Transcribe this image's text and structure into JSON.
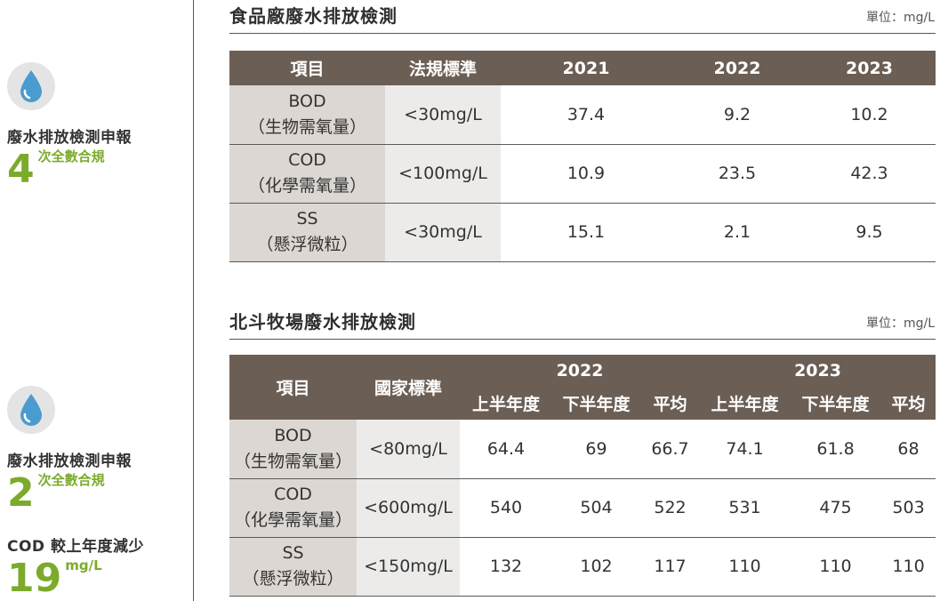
{
  "sidebar": {
    "kpi1": {
      "label": "廢水排放檢測申報",
      "number": "4",
      "suffix": "次全數合規",
      "icon": "water-drop-icon"
    },
    "kpi2": {
      "label": "廢水排放檢測申報",
      "number": "2",
      "suffix": "次全數合規",
      "icon": "water-drop-icon"
    },
    "kpi3": {
      "label": "COD 較上年度減少",
      "number": "19",
      "suffix": "mg/L"
    }
  },
  "colors": {
    "accent_green": "#7cab2c",
    "header_brown": "#6b5e55",
    "item_bg": "#dcd7d3",
    "std_bg": "#ecebea"
  },
  "table1": {
    "title": "食品廠廢水排放檢測",
    "unit": "單位：mg/L",
    "headers": [
      "項目",
      "法規標準",
      "2021",
      "2022",
      "2023"
    ],
    "rows": [
      {
        "item": "BOD",
        "item_sub": "（生物需氧量）",
        "std": "<30mg/L",
        "values": [
          "37.4",
          "9.2",
          "10.2"
        ]
      },
      {
        "item": "COD",
        "item_sub": "（化學需氧量）",
        "std": "<100mg/L",
        "values": [
          "10.9",
          "23.5",
          "42.3"
        ]
      },
      {
        "item": "SS",
        "item_sub": "（懸浮微粒）",
        "std": "<30mg/L",
        "values": [
          "15.1",
          "2.1",
          "9.5"
        ]
      }
    ]
  },
  "table2": {
    "title": "北斗牧場廢水排放檢測",
    "unit": "單位：mg/L",
    "header_item": "項目",
    "header_std": "國家標準",
    "years": [
      "2022",
      "2023"
    ],
    "subheaders": [
      "上半年度",
      "下半年度",
      "平均",
      "上半年度",
      "下半年度",
      "平均"
    ],
    "rows": [
      {
        "item": "BOD",
        "item_sub": "（生物需氧量）",
        "std": "<80mg/L",
        "values": [
          "64.4",
          "69",
          "66.7",
          "74.1",
          "61.8",
          "68"
        ]
      },
      {
        "item": "COD",
        "item_sub": "（化學需氧量）",
        "std": "<600mg/L",
        "values": [
          "540",
          "504",
          "522",
          "531",
          "475",
          "503"
        ]
      },
      {
        "item": "SS",
        "item_sub": "（懸浮微粒）",
        "std": "<150mg/L",
        "values": [
          "132",
          "102",
          "117",
          "110",
          "110",
          "110"
        ]
      }
    ]
  }
}
